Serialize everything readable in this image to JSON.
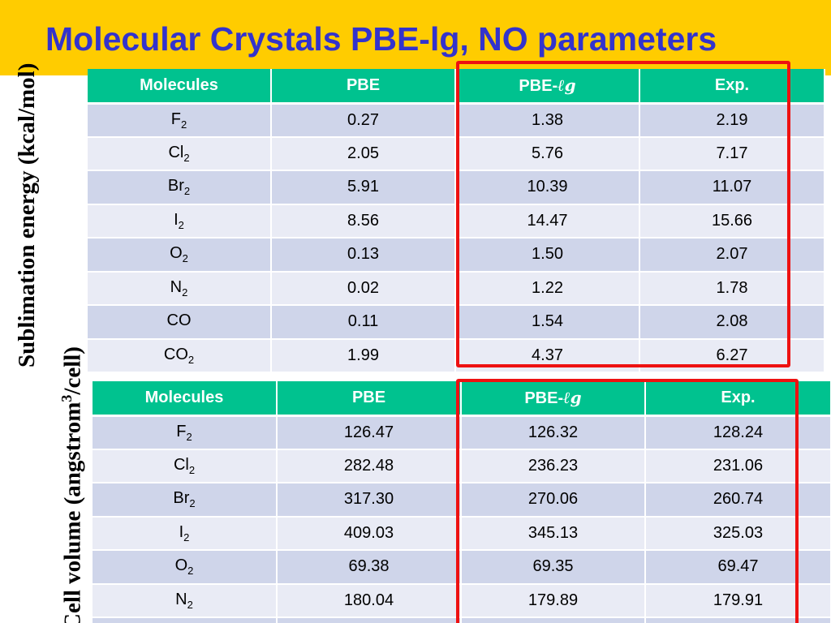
{
  "title": "Molecular Crystals PBE-lg, NO parameters",
  "side_labels": {
    "top": "Sublimation energy (kcal/mol)",
    "bottom_prefix": "Cell volume (angstrom",
    "bottom_sup": "3",
    "bottom_suffix": "/cell)"
  },
  "headers": {
    "molecules": "Molecules",
    "pbe": "PBE",
    "pbelg_prefix": "PBE-",
    "pbelg_italic": "ℓg",
    "exp": "Exp."
  },
  "sublimation_rows": [
    {
      "base": "F",
      "sub": "2",
      "pbe": "0.27",
      "pbelg": "1.38",
      "exp": "2.19"
    },
    {
      "base": "Cl",
      "sub": "2",
      "pbe": "2.05",
      "pbelg": "5.76",
      "exp": "7.17"
    },
    {
      "base": "Br",
      "sub": "2",
      "pbe": "5.91",
      "pbelg": "10.39",
      "exp": "11.07"
    },
    {
      "base": "I",
      "sub": "2",
      "pbe": "8.56",
      "pbelg": "14.47",
      "exp": "15.66"
    },
    {
      "base": "O",
      "sub": "2",
      "pbe": "0.13",
      "pbelg": "1.50",
      "exp": "2.07"
    },
    {
      "base": "N",
      "sub": "2",
      "pbe": "0.02",
      "pbelg": "1.22",
      "exp": "1.78"
    },
    {
      "base": "CO",
      "sub": "",
      "pbe": "0.11",
      "pbelg": "1.54",
      "exp": "2.08"
    },
    {
      "base": "CO",
      "sub": "2",
      "pbe": "1.99",
      "pbelg": "4.37",
      "exp": "6.27"
    }
  ],
  "volume_rows": [
    {
      "base": "F",
      "sub": "2",
      "pbe": "126.47",
      "pbelg": "126.32",
      "exp": "128.24"
    },
    {
      "base": "Cl",
      "sub": "2",
      "pbe": "282.48",
      "pbelg": "236.23",
      "exp": "231.06"
    },
    {
      "base": "Br",
      "sub": "2",
      "pbe": "317.30",
      "pbelg": "270.06",
      "exp": "260.74"
    },
    {
      "base": "I",
      "sub": "2",
      "pbe": "409.03",
      "pbelg": "345.13",
      "exp": "325.03"
    },
    {
      "base": "O",
      "sub": "2",
      "pbe": "69.38",
      "pbelg": "69.35",
      "exp": "69.47"
    },
    {
      "base": "N",
      "sub": "2",
      "pbe": "180.04",
      "pbelg": "179.89",
      "exp": "179.91"
    },
    {
      "base": "",
      "sub": "",
      "pbe": "",
      "pbelg": "",
      "exp": ""
    }
  ],
  "colors": {
    "title_bar": "#ffcc00",
    "title_text": "#3333cc",
    "header_bg": "#00c28f",
    "row_odd": "#cfd5ea",
    "row_even": "#e9ebf5",
    "highlight": "#ee1111"
  }
}
